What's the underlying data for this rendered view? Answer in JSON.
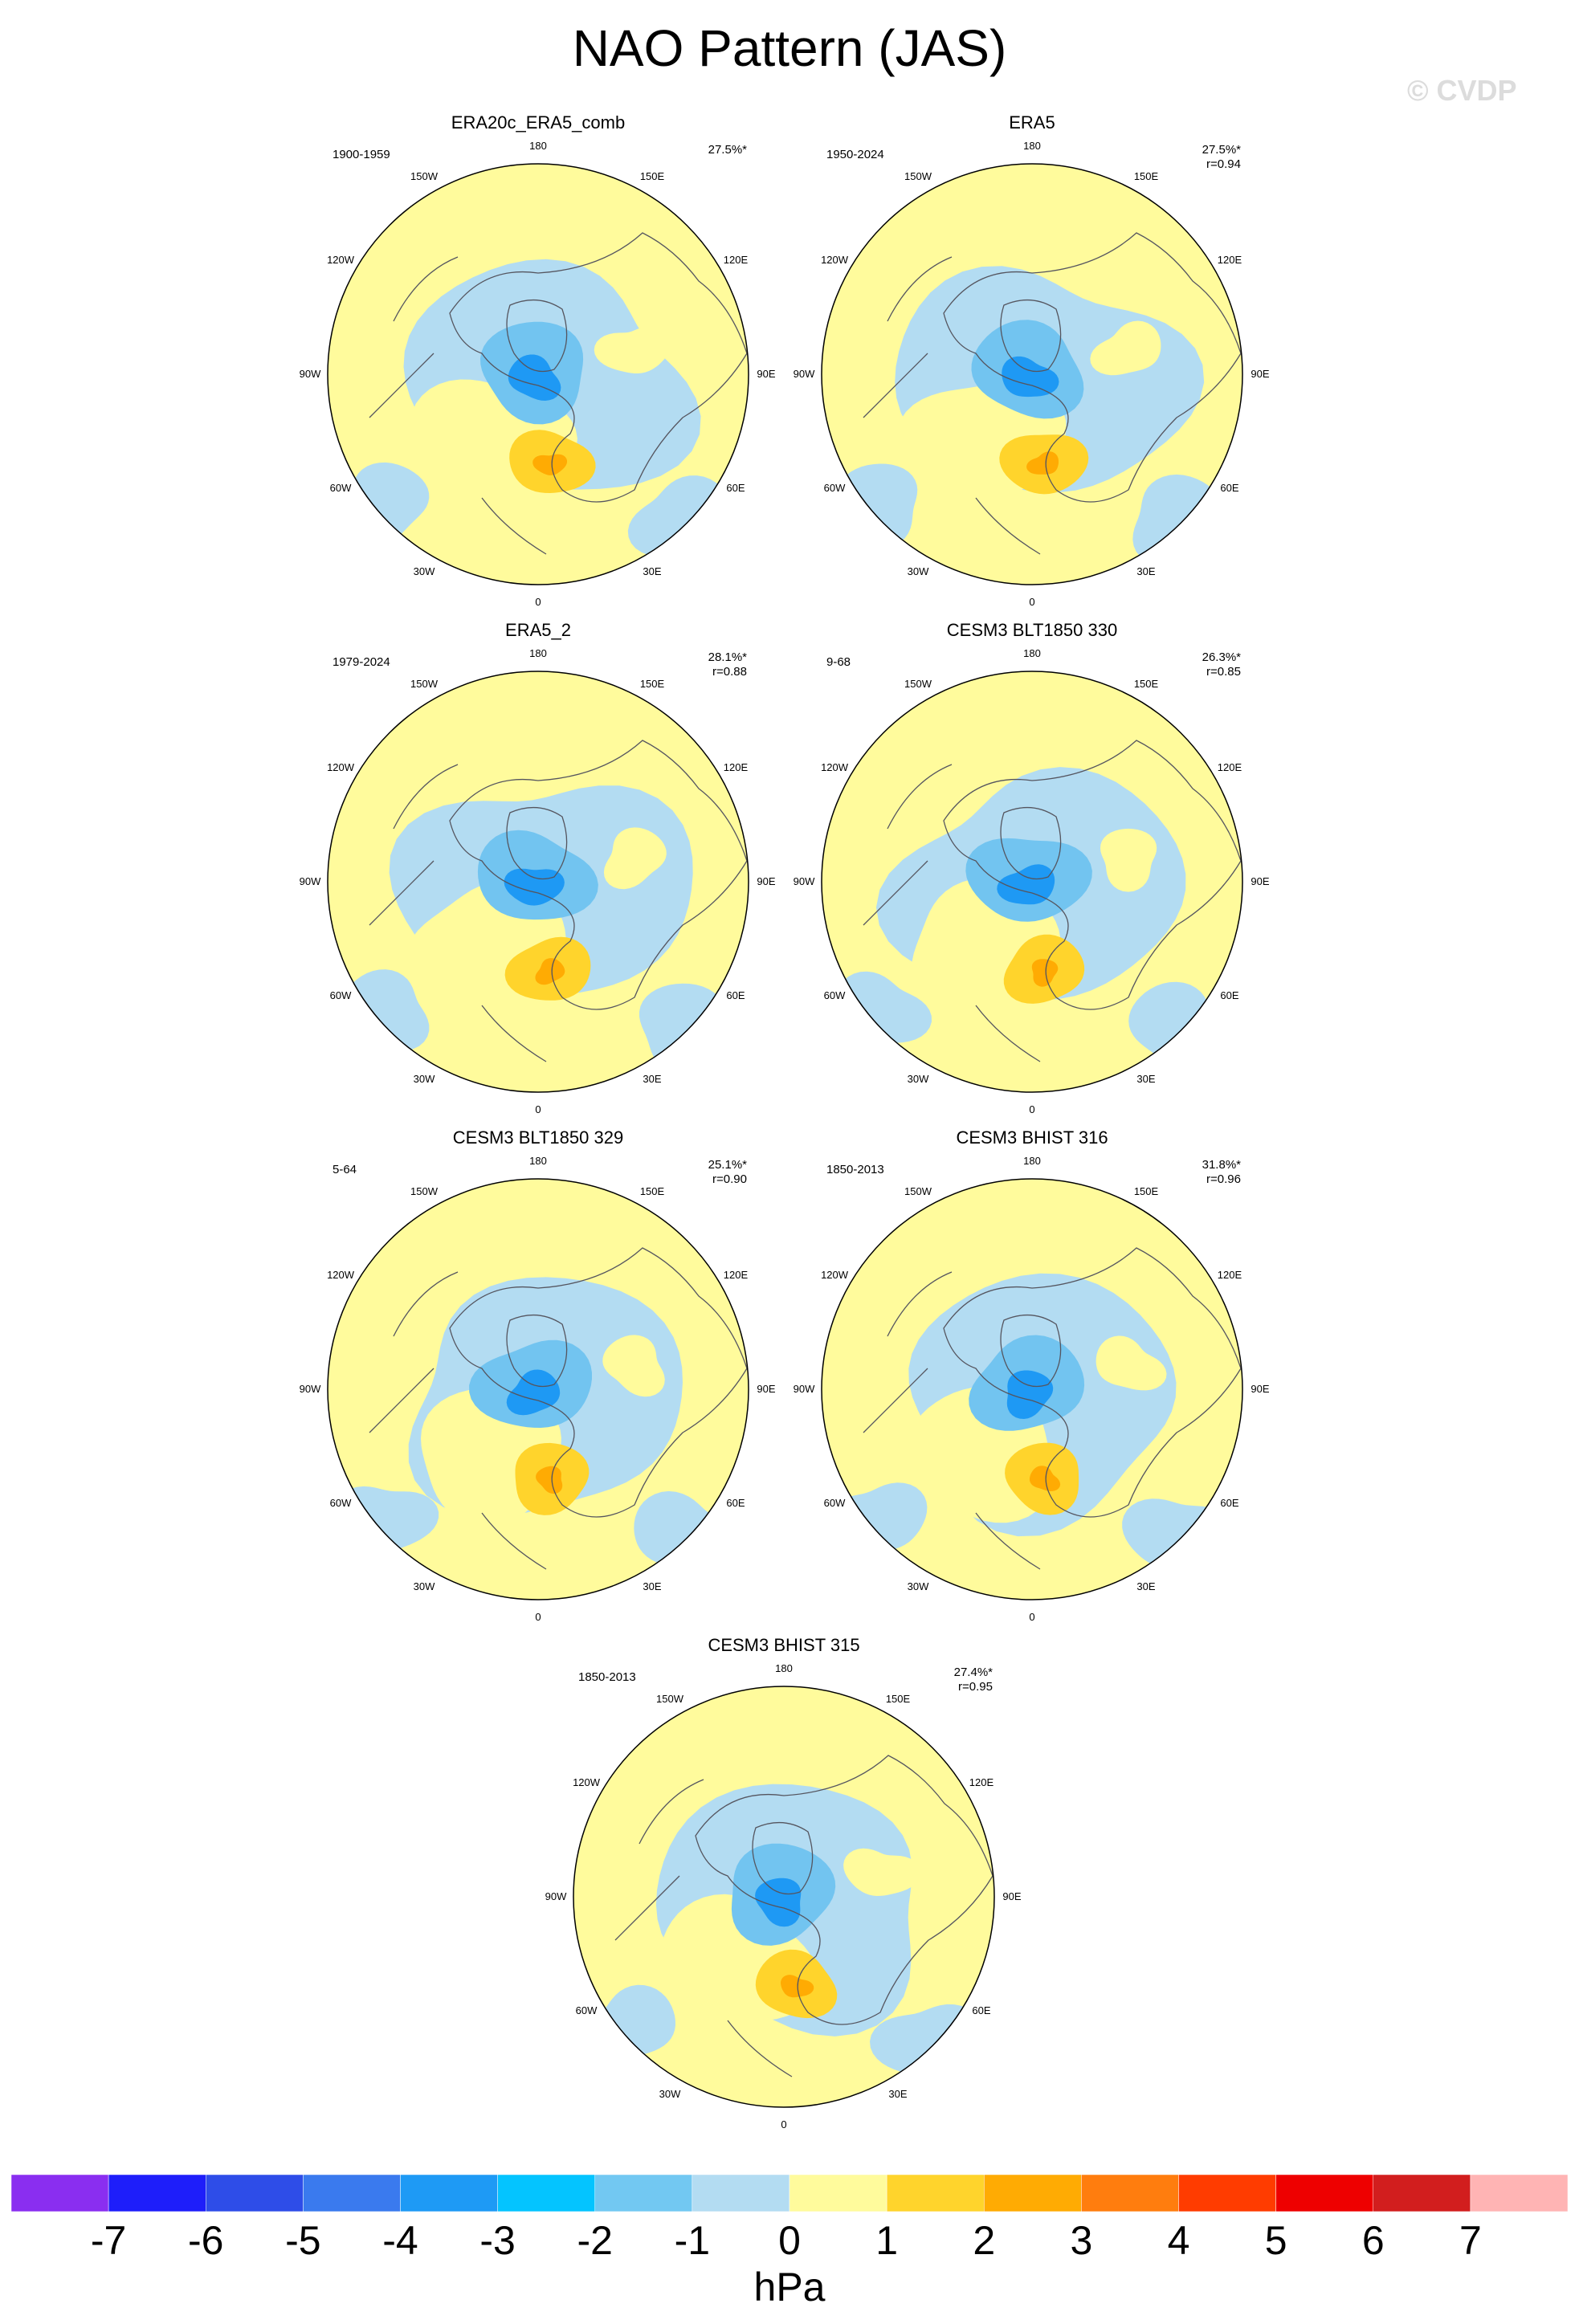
{
  "title": "NAO Pattern (JAS)",
  "watermark": "© CVDP",
  "longitude_labels": {
    "n180": "180",
    "n150e": "150E",
    "n120e": "120E",
    "n90e": "90E",
    "n60e": "60E",
    "n30e": "30E",
    "n0": "0",
    "n30w": "30W",
    "n60w": "60W",
    "n90w": "90W",
    "n120w": "120W",
    "n150w": "150W"
  },
  "colors": {
    "neg1": "#b3dcf2",
    "neg2": "#72c4f0",
    "neg3": "#1e99f4",
    "pos1": "#fffb9c",
    "pos2": "#ffd42c",
    "pos3": "#ffab03",
    "coast": "#55555f"
  },
  "panels": [
    {
      "title": "ERA20c_ERA5_comb",
      "period": "1900-1959",
      "pct": "27.5%*",
      "r": ""
    },
    {
      "title": "ERA5",
      "period": "1950-2024",
      "pct": "27.5%*",
      "r": "r=0.94"
    },
    {
      "title": "ERA5_2",
      "period": "1979-2024",
      "pct": "28.1%*",
      "r": "r=0.88"
    },
    {
      "title": "CESM3 BLT1850 330",
      "period": "9-68",
      "pct": "26.3%*",
      "r": "r=0.85"
    },
    {
      "title": "CESM3 BLT1850 329",
      "period": "5-64",
      "pct": "25.1%*",
      "r": "r=0.90"
    },
    {
      "title": "CESM3 BHIST 316",
      "period": "1850-2013",
      "pct": "31.8%*",
      "r": "r=0.96"
    },
    {
      "title": "CESM3 BHIST 315",
      "period": "1850-2013",
      "pct": "27.4%*",
      "r": "r=0.95"
    }
  ],
  "colorbar": {
    "colors": [
      "#8a2ef0",
      "#1e1efa",
      "#2e4de8",
      "#3a7aee",
      "#1e9af5",
      "#04c4ff",
      "#72c8f2",
      "#b3dcf2",
      "#fffb9c",
      "#ffd42c",
      "#ffab03",
      "#ff7d0e",
      "#ff3c00",
      "#ee0000",
      "#d21e1e",
      "#ffb4b4"
    ],
    "ticks": [
      "-7",
      "-6",
      "-5",
      "-4",
      "-3",
      "-2",
      "-1",
      "0",
      "1",
      "2",
      "3",
      "4",
      "5",
      "6",
      "7"
    ],
    "units": "hPa"
  }
}
